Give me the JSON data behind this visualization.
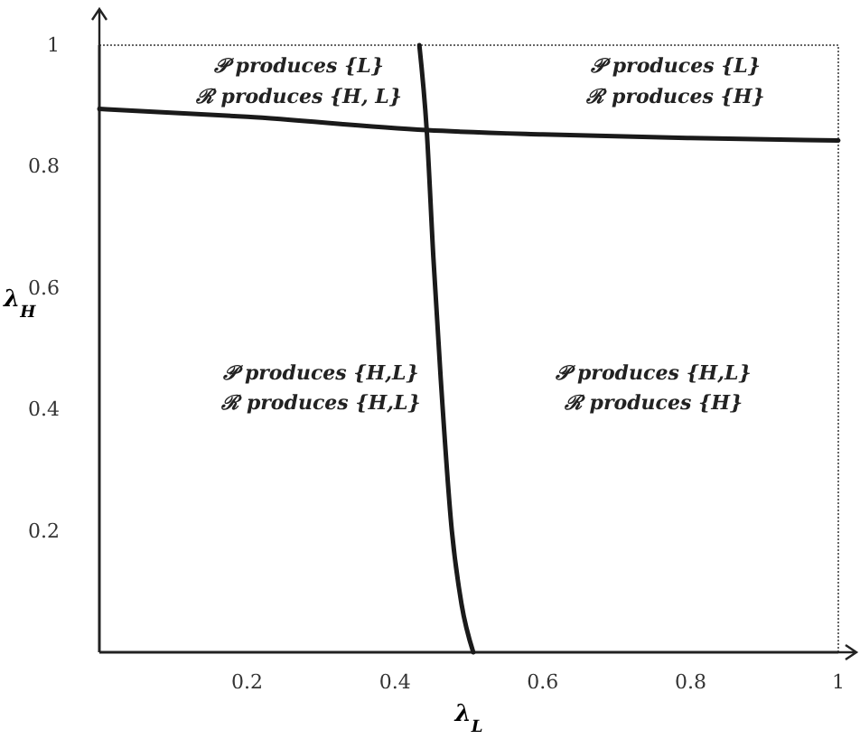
{
  "chart_data": {
    "type": "line",
    "xlabel": "λ$_{L}$",
    "ylabel": "λ$_{H}$",
    "xlim": [
      0,
      1
    ],
    "ylim": [
      0,
      1
    ],
    "xticks": [
      0.2,
      0.4,
      0.6,
      0.8,
      1
    ],
    "yticks": [
      0.2,
      0.4,
      0.6,
      0.8,
      1
    ],
    "grid": false,
    "marker": "none",
    "line_style": "solid",
    "series": [
      {
        "color": "#1a1a1a",
        "x": [
          0,
          0.2,
          0.443,
          0.6,
          0.8,
          1
        ],
        "values": [
          0.895,
          0.882,
          0.86,
          0.853,
          0.847,
          0.843
        ]
      },
      {
        "color": "#1a1a1a",
        "x": [
          0.433,
          0.443,
          0.452,
          0.462,
          0.477,
          0.49,
          0.506
        ],
        "values": [
          1,
          0.86,
          0.65,
          0.45,
          0.2,
          0.08,
          0
        ]
      }
    ],
    "annotations": [
      "𝒫 produces {L}",
      "ℛ produces {H, L}",
      "𝒫 produces {L}",
      "ℛ produces {H}",
      "𝒫 produces {H,L}",
      "ℛ produces {H,L}",
      "𝒫 produces {H,L}",
      "ℛ produces {H}"
    ]
  }
}
